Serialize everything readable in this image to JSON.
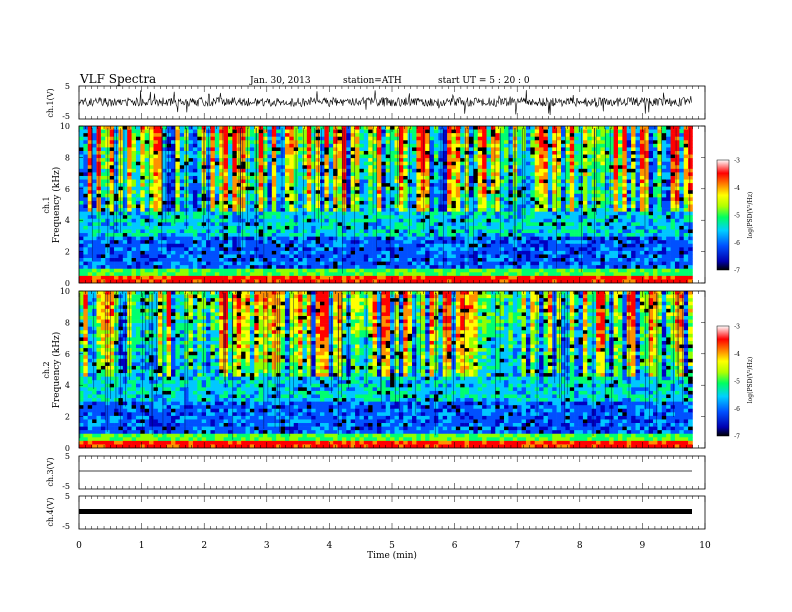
{
  "header": {
    "title": "VLF  Spectra",
    "date": "Jan. 30, 2013",
    "station": "station=ATH",
    "start": "start  UT  =   5  : 20 : 0"
  },
  "chart_data": [
    {
      "type": "line",
      "ylabel": "ch.1(V)",
      "ylim": [
        -5,
        5
      ],
      "yticks": [
        "5",
        "-5"
      ],
      "xlim": [
        0,
        10
      ],
      "baseline": 0,
      "trace_color": "#000000"
    },
    {
      "type": "heatmap",
      "ylabel_top": "ch.1",
      "ylabel": "Frequency  (kHz)",
      "ylim": [
        0,
        10
      ],
      "yticks": [
        "0",
        "2",
        "4",
        "6",
        "8",
        "10"
      ],
      "xlim": [
        0,
        10
      ],
      "data_end_min": 9.8,
      "colorbar": {
        "label": "log(PSD(V²/Hz)",
        "range": [
          -7,
          -3
        ],
        "ticks": [
          "-3",
          "-4",
          "-5",
          "-6",
          "-7"
        ]
      }
    },
    {
      "type": "heatmap",
      "ylabel_top": "ch.2",
      "ylabel": "Frequency  (kHz)",
      "ylim": [
        0,
        10
      ],
      "yticks": [
        "0",
        "2",
        "4",
        "6",
        "8",
        "10"
      ],
      "xlim": [
        0,
        10
      ],
      "data_end_min": 9.8,
      "colorbar": {
        "label": "log(PSD(V²/Hz)",
        "range": [
          -7,
          -3
        ],
        "ticks": [
          "-3",
          "-4",
          "-5",
          "-6",
          "-7"
        ]
      }
    },
    {
      "type": "line",
      "ylabel": "ch.3(V)",
      "ylim": [
        -5,
        5
      ],
      "yticks": [
        "5",
        "-5"
      ],
      "xlim": [
        0,
        10
      ],
      "baseline": 0
    },
    {
      "type": "line",
      "ylabel": "ch.4(V)",
      "ylim": [
        -5,
        5
      ],
      "yticks": [
        "5",
        "-5"
      ],
      "xlim": [
        0,
        10
      ],
      "baseline": 0,
      "xlabel": "Time  (min)",
      "xticks": [
        "0",
        "1",
        "2",
        "3",
        "4",
        "5",
        "6",
        "7",
        "8",
        "9",
        "10"
      ]
    }
  ]
}
